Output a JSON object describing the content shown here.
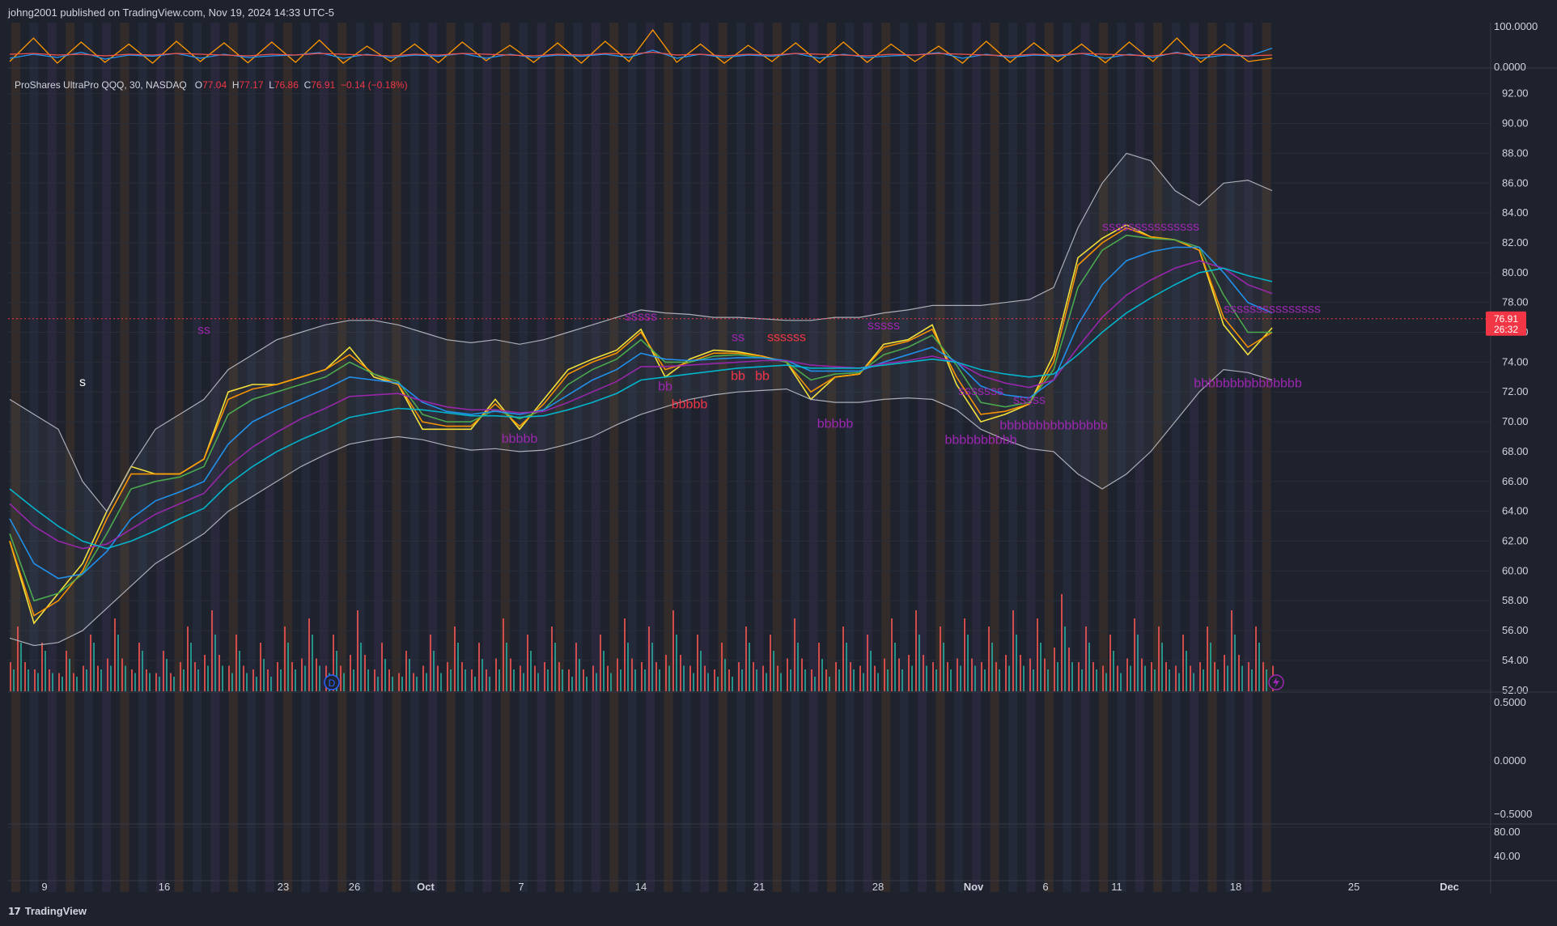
{
  "header": {
    "published": "johng2001 published on TradingView.com, Nov 19, 2024 14:33 UTC-5"
  },
  "legend": {
    "symbol": "ProShares UltraPro QQQ, 30, NASDAQ",
    "o_label": "O",
    "o": "77.04",
    "h_label": "H",
    "h": "77.17",
    "l_label": "L",
    "l": "76.86",
    "c_label": "C",
    "c": "76.91",
    "change": "−0.14 (−0.18%)"
  },
  "price_badge": {
    "price": "76.91",
    "countdown": "26:32"
  },
  "footer": {
    "brand": "TradingView",
    "logo_text": "17"
  },
  "colors": {
    "background": "#1e222d",
    "grid": "#2a2e39",
    "text": "#d1d4dc",
    "up": "#26a69a",
    "down": "#ef5350",
    "badge": "#f23645",
    "bollinger": "#b2b5be",
    "signal_purple": "#9c27b0",
    "signal_red": "#f23645"
  },
  "icons": [
    "dividend-d-icon",
    "lightning-icon",
    "tradingview-logo-icon"
  ],
  "chart_data": [
    {
      "type": "line",
      "title": "",
      "pane": "oscillator",
      "y_ticks": [
        "100.0000",
        "0.0000"
      ],
      "ylim": [
        0,
        100
      ],
      "series": [
        {
          "color": "#ff9800",
          "values": [
            12,
            70,
            8,
            60,
            10,
            55,
            8,
            62,
            12,
            58,
            9,
            60,
            10,
            65,
            8,
            50,
            12,
            55,
            9,
            60,
            14,
            52,
            10,
            58,
            8,
            62,
            12,
            90,
            10,
            55,
            8,
            52,
            12,
            58,
            9,
            60,
            10,
            55,
            12,
            50,
            8,
            62,
            10,
            58,
            12,
            55,
            9,
            60,
            12,
            70,
            10,
            55,
            12,
            20
          ]
        },
        {
          "color": "#2196f3",
          "values": [
            20,
            30,
            22,
            35,
            18,
            28,
            25,
            32,
            20,
            30,
            22,
            26,
            28,
            34,
            20,
            30,
            22,
            28,
            25,
            32,
            20,
            30,
            22,
            28,
            25,
            30,
            22,
            40,
            20,
            30,
            22,
            28,
            25,
            32,
            20,
            30,
            22,
            26,
            28,
            34,
            20,
            30,
            22,
            28,
            25,
            32,
            20,
            30,
            22,
            35,
            20,
            28,
            25,
            45
          ]
        },
        {
          "color": "#ef5350",
          "values": [
            30,
            32,
            28,
            30,
            26,
            30,
            28,
            32,
            30,
            28,
            26,
            30,
            28,
            32,
            30,
            28,
            26,
            30,
            28,
            32,
            30,
            28,
            26,
            30,
            28,
            32,
            30,
            35,
            28,
            30,
            26,
            30,
            28,
            32,
            30,
            28,
            26,
            30,
            28,
            32,
            30,
            28,
            26,
            30,
            28,
            32,
            30,
            28,
            26,
            33,
            28,
            30,
            26,
            28
          ]
        }
      ]
    },
    {
      "type": "line",
      "title": "",
      "pane": "price",
      "x_tick_labels": [
        "9",
        "16",
        "23",
        "26",
        "Oct",
        "7",
        "14",
        "21",
        "28",
        "Nov",
        "6",
        "11",
        "18",
        "25",
        "Dec"
      ],
      "y_tick_labels": [
        "92.00",
        "90.00",
        "88.00",
        "86.00",
        "84.00",
        "82.00",
        "80.00",
        "78.00",
        "76.00",
        "74.00",
        "72.00",
        "70.00",
        "68.00",
        "66.00",
        "64.00",
        "62.00",
        "60.00",
        "58.00",
        "56.00",
        "54.00",
        "52.00"
      ],
      "ylim": [
        51.5,
        92.2
      ],
      "last_price": 76.91,
      "grid": true,
      "x": [
        "Sep 06",
        "Sep 09",
        "Sep 10",
        "Sep 11",
        "Sep 12",
        "Sep 13",
        "Sep 16",
        "Sep 17",
        "Sep 18",
        "Sep 19",
        "Sep 20",
        "Sep 23",
        "Sep 24",
        "Sep 25",
        "Sep 26",
        "Sep 27",
        "Sep 30",
        "Oct 01",
        "Oct 02",
        "Oct 03",
        "Oct 04",
        "Oct 07",
        "Oct 08",
        "Oct 09",
        "Oct 10",
        "Oct 11",
        "Oct 14",
        "Oct 15",
        "Oct 16",
        "Oct 17",
        "Oct 18",
        "Oct 21",
        "Oct 22",
        "Oct 23",
        "Oct 24",
        "Oct 25",
        "Oct 28",
        "Oct 29",
        "Oct 30",
        "Oct 31",
        "Nov 01",
        "Nov 04",
        "Nov 05",
        "Nov 06",
        "Nov 07",
        "Nov 08",
        "Nov 11",
        "Nov 12",
        "Nov 13",
        "Nov 14",
        "Nov 15",
        "Nov 18",
        "Nov 19"
      ],
      "series": [
        {
          "color": "#ffeb3b",
          "values": [
            62,
            56.5,
            58.5,
            60.5,
            64,
            67,
            66.5,
            66.5,
            67.5,
            72,
            72.5,
            72.5,
            73,
            73.5,
            75,
            73,
            72.5,
            69.5,
            69.5,
            69.5,
            71.5,
            69.5,
            71.5,
            73.5,
            74.2,
            74.8,
            76.2,
            73,
            74.2,
            74.8,
            74.7,
            74.4,
            74,
            71.5,
            73,
            73.2,
            75.2,
            75.5,
            76.5,
            72.5,
            70,
            70.5,
            71.2,
            74.5,
            81,
            82.3,
            83.2,
            82.4,
            82.2,
            81.5,
            76.5,
            74.5,
            76.3
          ]
        },
        {
          "color": "#ff9800",
          "values": [
            62,
            57,
            58,
            60,
            63.5,
            66.5,
            66.5,
            66.5,
            67.5,
            71.5,
            72.2,
            72.5,
            73,
            73.5,
            74.5,
            73.2,
            72.5,
            70,
            69.7,
            69.7,
            71.2,
            69.7,
            71.2,
            73.2,
            74,
            74.6,
            76,
            73.5,
            74,
            74.6,
            74.6,
            74.4,
            74,
            72,
            73,
            73.2,
            75,
            75.4,
            76.2,
            73,
            70.5,
            70.7,
            71.2,
            74,
            80.5,
            82,
            83,
            82.4,
            82.2,
            81.5,
            77,
            75,
            76
          ]
        },
        {
          "color": "#4caf50",
          "values": [
            62.5,
            58,
            58.5,
            59.8,
            62.5,
            65.5,
            66,
            66.3,
            67,
            70.5,
            71.5,
            72,
            72.5,
            73,
            74,
            73.2,
            72.7,
            70.5,
            70,
            70,
            70.8,
            70.2,
            70.8,
            72.5,
            73.5,
            74.2,
            75.5,
            74,
            74,
            74.4,
            74.5,
            74.3,
            74,
            72.8,
            73.2,
            73.3,
            74.5,
            75,
            75.8,
            73.8,
            71.3,
            71,
            71.3,
            73.5,
            79,
            81.5,
            82.5,
            82.3,
            82.2,
            81.7,
            78.5,
            76,
            76
          ]
        },
        {
          "color": "#2196f3",
          "values": [
            63.5,
            60.5,
            59.5,
            59.8,
            61.3,
            63.5,
            64.7,
            65.3,
            66,
            68.5,
            70,
            70.8,
            71.5,
            72.2,
            73,
            72.8,
            72.6,
            71.3,
            70.7,
            70.5,
            70.7,
            70.5,
            70.8,
            71.8,
            72.8,
            73.5,
            74.6,
            74.2,
            74.1,
            74.2,
            74.3,
            74.3,
            74.1,
            73.4,
            73.4,
            73.4,
            74,
            74.5,
            75,
            74,
            72.4,
            71.8,
            71.6,
            72.8,
            76.5,
            79.2,
            80.8,
            81.4,
            81.7,
            81.7,
            80,
            78,
            77.3
          ]
        },
        {
          "color": "#9c27b0",
          "values": [
            64.5,
            63,
            62,
            61.5,
            61.8,
            62.8,
            63.8,
            64.5,
            65.2,
            67,
            68.3,
            69.3,
            70.2,
            70.9,
            71.7,
            71.8,
            71.9,
            71.4,
            71,
            70.8,
            70.8,
            70.6,
            70.7,
            71.3,
            72,
            72.7,
            73.7,
            73.7,
            73.8,
            73.9,
            74,
            74.1,
            74.1,
            73.8,
            73.7,
            73.6,
            73.9,
            74.1,
            74.4,
            74,
            73.1,
            72.6,
            72.3,
            72.8,
            75,
            77,
            78.5,
            79.5,
            80.3,
            80.8,
            80.3,
            79.2,
            78.6
          ]
        },
        {
          "color": "#00bcd4",
          "values": [
            65.5,
            64.2,
            63,
            62,
            61.5,
            62,
            62.7,
            63.5,
            64.2,
            65.8,
            67,
            68,
            68.8,
            69.5,
            70.3,
            70.6,
            70.9,
            70.8,
            70.6,
            70.4,
            70.4,
            70.3,
            70.4,
            70.8,
            71.3,
            71.9,
            72.8,
            73,
            73.2,
            73.4,
            73.6,
            73.7,
            73.8,
            73.6,
            73.6,
            73.6,
            73.8,
            74,
            74.2,
            74,
            73.5,
            73.2,
            73,
            73.2,
            74.5,
            76,
            77.3,
            78.3,
            79.2,
            80,
            80.3,
            79.8,
            79.4
          ]
        },
        {
          "color": "#b2b5be",
          "values": [
            71.5,
            70.5,
            69.5,
            66,
            64,
            67,
            69.5,
            70.5,
            71.5,
            73.5,
            74.5,
            75.5,
            76,
            76.5,
            76.8,
            76.8,
            76.5,
            76,
            75.5,
            75.3,
            75.5,
            75.2,
            75.5,
            76,
            76.5,
            77,
            77.5,
            77.3,
            77.2,
            77,
            77,
            76.9,
            76.8,
            76.8,
            77,
            77,
            77.3,
            77.5,
            77.8,
            77.8,
            77.8,
            78,
            78.2,
            79,
            83,
            86,
            88,
            87.5,
            85.5,
            84.5,
            86,
            86.2,
            85.5
          ]
        },
        {
          "color": "#b2b5be",
          "values": [
            55.5,
            55,
            55.2,
            56,
            57.5,
            59,
            60.5,
            61.5,
            62.5,
            64,
            65,
            66,
            67,
            67.8,
            68.5,
            68.8,
            69,
            68.8,
            68.4,
            68.1,
            68.2,
            68,
            68.1,
            68.5,
            69,
            69.8,
            70.5,
            71,
            71.5,
            71.8,
            72,
            72.1,
            72.2,
            71.5,
            71.3,
            71.3,
            71.5,
            71.6,
            71.5,
            70.8,
            69.5,
            68.8,
            68.2,
            68,
            66.5,
            65.5,
            66.5,
            68,
            70,
            72,
            73.5,
            73.3,
            72.8
          ]
        }
      ],
      "signals": [
        {
          "text": "s",
          "x": "Sep 11",
          "y": 72.4,
          "color": "#ffffff"
        },
        {
          "text": "ss",
          "x": "Sep 18",
          "y": 75.9,
          "color": "#9c27b0"
        },
        {
          "text": "sssss",
          "x": "Oct 14",
          "y": 76.8,
          "color": "#9c27b0"
        },
        {
          "text": "bb",
          "x": "Oct 15",
          "y": 72.1,
          "color": "#9c27b0"
        },
        {
          "text": "bbbbb",
          "x": "Oct 16",
          "y": 70.9,
          "color": "#f23645"
        },
        {
          "text": "ss",
          "x": "Oct 18",
          "y": 75.4,
          "color": "#9c27b0"
        },
        {
          "text": "bb",
          "x": "Oct 18",
          "y": 72.8,
          "color": "#f23645"
        },
        {
          "text": "bb",
          "x": "Oct 21",
          "y": 72.8,
          "color": "#f23645"
        },
        {
          "text": "ssssss",
          "x": "Oct 22",
          "y": 75.4,
          "color": "#f23645"
        },
        {
          "text": "bbbbb",
          "x": "Oct 24",
          "y": 69.6,
          "color": "#9c27b0"
        },
        {
          "text": "bbbbb",
          "x": "Oct 07",
          "y": 68.6,
          "color": "#9c27b0"
        },
        {
          "text": "sssss",
          "x": "Oct 28",
          "y": 76.2,
          "color": "#9c27b0"
        },
        {
          "text": "sssssss",
          "x": "Nov 01",
          "y": 71.8,
          "color": "#9c27b0"
        },
        {
          "text": "bbbbbbbbbb",
          "x": "Nov 01",
          "y": 68.5,
          "color": "#9c27b0"
        },
        {
          "text": "bbbbbbbbbbbbbbb",
          "x": "Nov 06",
          "y": 69.5,
          "color": "#9c27b0"
        },
        {
          "text": "sssss",
          "x": "Nov 05",
          "y": 71.2,
          "color": "#9c27b0"
        },
        {
          "text": "sssssssssssssss",
          "x": "Nov 12",
          "y": 82.8,
          "color": "#9c27b0"
        },
        {
          "text": "bbbbbbbbbbbbbbb",
          "x": "Nov 18",
          "y": 72.3,
          "color": "#9c27b0"
        },
        {
          "text": "sssssssssssssss",
          "x": "Nov 19",
          "y": 77.3,
          "color": "#9c27b0"
        }
      ]
    },
    {
      "type": "bar",
      "title": "",
      "pane": "volume",
      "series": [
        {
          "name": "",
          "color": "#ef5350",
          "values": [
            8,
            6,
            5,
            7,
            9,
            6,
            5,
            8,
            10,
            7,
            6,
            8,
            9,
            7,
            10,
            6,
            5,
            7,
            8,
            6,
            9,
            7,
            8,
            6,
            7,
            9,
            8,
            10,
            7,
            6,
            8,
            7,
            9,
            6,
            8,
            7,
            9,
            10,
            8,
            9,
            8,
            10,
            9,
            12,
            8,
            7,
            9,
            8,
            7,
            8,
            10,
            8,
            7
          ]
        },
        {
          "name": "",
          "color": "#26a69a",
          "values": [
            6,
            5,
            4,
            6,
            7,
            5,
            4,
            6,
            7,
            5,
            4,
            6,
            7,
            5,
            6,
            4,
            4,
            5,
            6,
            4,
            6,
            5,
            6,
            4,
            5,
            6,
            6,
            7,
            5,
            4,
            6,
            5,
            6,
            4,
            6,
            5,
            6,
            7,
            6,
            7,
            6,
            7,
            6,
            8,
            6,
            5,
            7,
            6,
            5,
            6,
            7,
            6,
            5
          ]
        }
      ]
    },
    {
      "type": "line",
      "title": "",
      "pane": "lower",
      "y_tick_labels": [
        "0.5000",
        "0.0000",
        "−0.5000",
        "80.00",
        "40.00"
      ],
      "series": []
    }
  ]
}
